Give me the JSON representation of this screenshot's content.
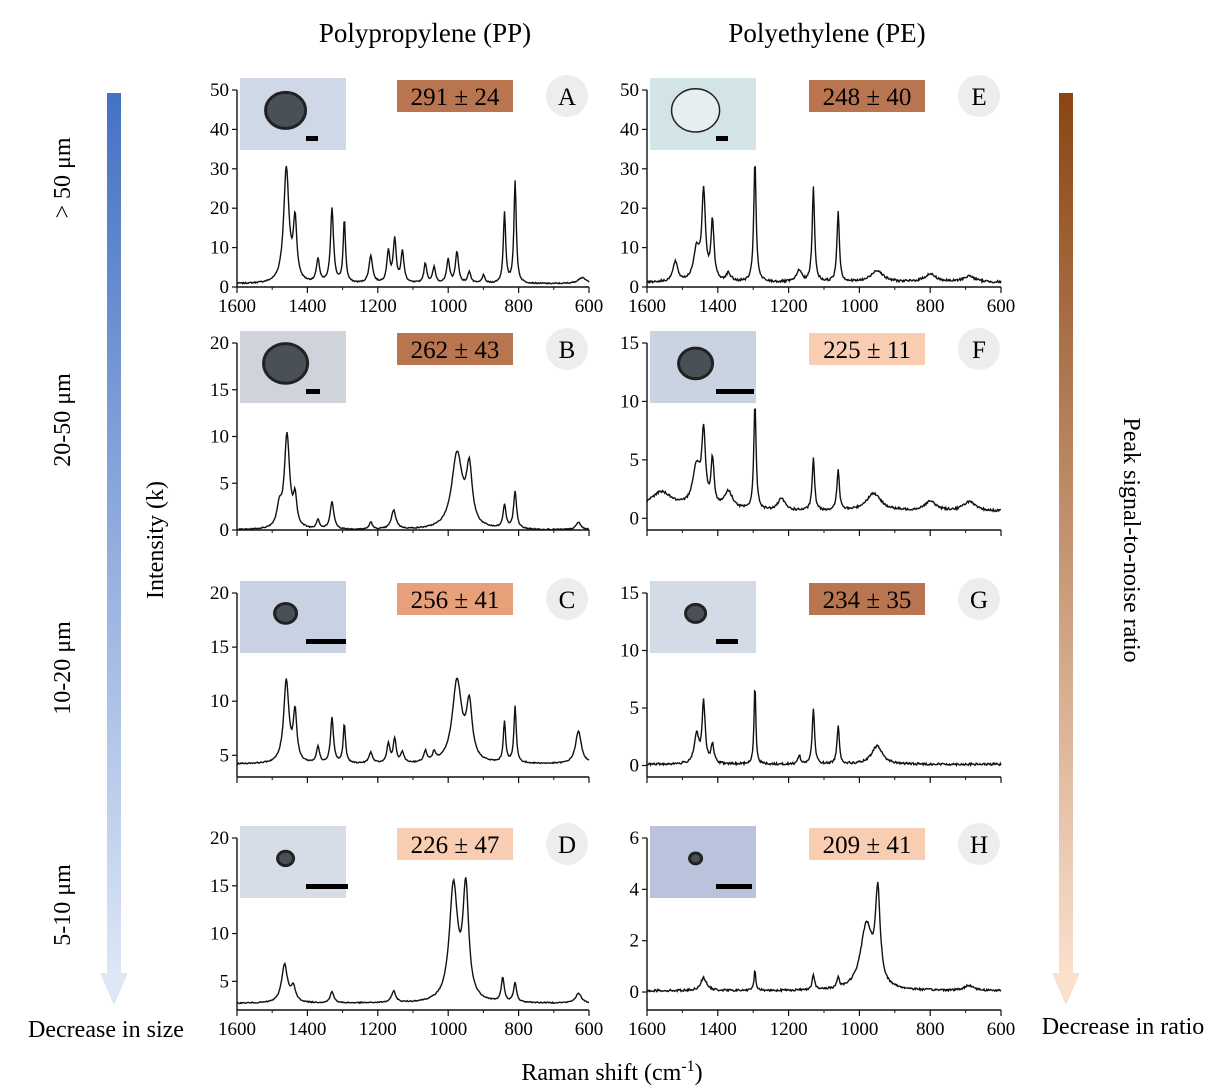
{
  "figure": {
    "column_titles": [
      "Polypropylene (PP)",
      "Polyethylene (PE)"
    ],
    "row_labels": [
      "> 50 μm",
      "20-50 μm",
      "10-20 μm",
      "5-10 μm"
    ],
    "left_arrow_label": "Decrease in size",
    "right_arrow_label": "Decrease in ratio",
    "right_axis_title": "Peak signal-to-noise ratio",
    "y_axis_title": "Intensity (k)",
    "x_axis_title": "Raman shift (cm",
    "x_axis_unit_sup": "-1",
    "x_axis_close": ")",
    "x_ticks": [
      "1600",
      "1400",
      "1200",
      "1000",
      "800",
      "600"
    ],
    "colors": {
      "line": "#111111",
      "left_arrow": "#4472c4",
      "right_arrow": "#8b4513",
      "badge_dark": "#b87550",
      "badge_mid": "#e8a07a",
      "badge_light": "#f8cdb1",
      "letter_bg": "#ededed"
    }
  },
  "chart_data": [
    {
      "type": "line",
      "panel": "A",
      "polymer": "PP",
      "size": "> 50 μm",
      "badge": "291 ± 24",
      "badge_tone": "dark",
      "xlim": [
        1600,
        600
      ],
      "ylim": [
        0,
        50
      ],
      "yticks": [
        0,
        10,
        20,
        30,
        40,
        50
      ],
      "baseline": 0.8,
      "peaks": [
        [
          1460,
          29,
          9
        ],
        [
          1435,
          15,
          6
        ],
        [
          1370,
          6,
          5
        ],
        [
          1330,
          19,
          5
        ],
        [
          1295,
          16,
          4
        ],
        [
          1220,
          7,
          6
        ],
        [
          1170,
          8,
          5
        ],
        [
          1152,
          11,
          5
        ],
        [
          1130,
          8,
          5
        ],
        [
          1065,
          5,
          5
        ],
        [
          1040,
          4,
          5
        ],
        [
          1000,
          6,
          5
        ],
        [
          975,
          8,
          5
        ],
        [
          940,
          3,
          5
        ],
        [
          900,
          2,
          5
        ],
        [
          840,
          18,
          4
        ],
        [
          810,
          26,
          4
        ],
        [
          620,
          1.5,
          15
        ]
      ]
    },
    {
      "type": "line",
      "panel": "B",
      "polymer": "PP",
      "size": "20-50 μm",
      "badge": "262 ± 43",
      "badge_tone": "dark",
      "xlim": [
        1600,
        600
      ],
      "ylim": [
        0,
        20
      ],
      "yticks": [
        0,
        5,
        10,
        15,
        20
      ],
      "baseline": 0,
      "peaks": [
        [
          1480,
          2,
          8
        ],
        [
          1458,
          10,
          9
        ],
        [
          1435,
          3,
          6
        ],
        [
          1370,
          1,
          5
        ],
        [
          1330,
          3,
          6
        ],
        [
          1220,
          0.8,
          5
        ],
        [
          1155,
          2,
          8
        ],
        [
          975,
          8,
          18
        ],
        [
          940,
          6,
          10
        ],
        [
          840,
          2.5,
          5
        ],
        [
          810,
          4,
          5
        ],
        [
          630,
          0.8,
          8
        ]
      ]
    },
    {
      "type": "line",
      "panel": "C",
      "polymer": "PP",
      "size": "10-20 μm",
      "badge": "256 ± 41",
      "badge_tone": "mid",
      "xlim": [
        1600,
        600
      ],
      "ylim": [
        3,
        20
      ],
      "yticks": [
        5,
        10,
        15,
        20
      ],
      "baseline": 4.2,
      "peaks": [
        [
          1460,
          7.6,
          9
        ],
        [
          1435,
          4.5,
          6
        ],
        [
          1370,
          1.5,
          5
        ],
        [
          1330,
          4.2,
          5
        ],
        [
          1295,
          3.6,
          4
        ],
        [
          1220,
          1,
          6
        ],
        [
          1170,
          1.8,
          5
        ],
        [
          1152,
          2.2,
          5
        ],
        [
          1130,
          1,
          5
        ],
        [
          1065,
          1,
          5
        ],
        [
          1040,
          0.8,
          5
        ],
        [
          975,
          7.5,
          16
        ],
        [
          940,
          5,
          10
        ],
        [
          840,
          3.8,
          4
        ],
        [
          810,
          5.2,
          4
        ],
        [
          630,
          3,
          10
        ]
      ]
    },
    {
      "type": "line",
      "panel": "D",
      "polymer": "PP",
      "size": "5-10 μm",
      "badge": "226 ± 47",
      "badge_tone": "light",
      "xlim": [
        1600,
        600
      ],
      "ylim": [
        2,
        20
      ],
      "yticks": [
        5,
        10,
        15,
        20
      ],
      "baseline": 2.7,
      "peaks": [
        [
          1465,
          4,
          10
        ],
        [
          1440,
          1.5,
          8
        ],
        [
          1330,
          1.2,
          6
        ],
        [
          1155,
          1.2,
          7
        ],
        [
          985,
          12,
          14
        ],
        [
          950,
          11.5,
          10
        ],
        [
          845,
          2.5,
          5
        ],
        [
          810,
          2,
          5
        ],
        [
          630,
          1,
          10
        ]
      ]
    },
    {
      "type": "line",
      "panel": "E",
      "polymer": "PE",
      "size": "> 50 μm",
      "badge": "248 ± 40",
      "badge_tone": "dark",
      "xlim": [
        1600,
        600
      ],
      "ylim": [
        0,
        50
      ],
      "yticks": [
        0,
        10,
        20,
        30,
        40,
        50
      ],
      "baseline": 1.2,
      "peaks": [
        [
          1520,
          5,
          8
        ],
        [
          1460,
          8,
          10
        ],
        [
          1440,
          22,
          6
        ],
        [
          1415,
          15,
          5
        ],
        [
          1370,
          2,
          8
        ],
        [
          1295,
          31,
          4
        ],
        [
          1170,
          3,
          8
        ],
        [
          1130,
          24,
          4
        ],
        [
          1060,
          18,
          4
        ],
        [
          950,
          3,
          20
        ],
        [
          800,
          2,
          20
        ],
        [
          690,
          1.5,
          20
        ]
      ]
    },
    {
      "type": "line",
      "panel": "F",
      "polymer": "PE",
      "size": "20-50 μm",
      "badge": "225 ± 11",
      "badge_tone": "light",
      "xlim": [
        1600,
        600
      ],
      "ylim": [
        -1,
        15
      ],
      "yticks": [
        0,
        5,
        10,
        15
      ],
      "baseline": 0.6,
      "peaks": [
        [
          1560,
          1.6,
          40
        ],
        [
          1460,
          3.5,
          14
        ],
        [
          1440,
          6,
          6
        ],
        [
          1415,
          4,
          5
        ],
        [
          1370,
          1.5,
          15
        ],
        [
          1295,
          9,
          4
        ],
        [
          1220,
          1,
          12
        ],
        [
          1130,
          4.5,
          4
        ],
        [
          1060,
          3.5,
          4
        ],
        [
          960,
          1.5,
          25
        ],
        [
          800,
          0.8,
          20
        ],
        [
          690,
          0.8,
          20
        ]
      ]
    },
    {
      "type": "line",
      "panel": "G",
      "polymer": "PE",
      "size": "10-20 μm",
      "badge": "234 ± 35",
      "badge_tone": "dark",
      "xlim": [
        1600,
        600
      ],
      "ylim": [
        -1,
        15
      ],
      "yticks": [
        0,
        5,
        10,
        15
      ],
      "baseline": 0.1,
      "peaks": [
        [
          1460,
          2.5,
          8
        ],
        [
          1440,
          5.3,
          5
        ],
        [
          1415,
          1.6,
          5
        ],
        [
          1295,
          7,
          3
        ],
        [
          1170,
          0.8,
          4
        ],
        [
          1130,
          4.8,
          4
        ],
        [
          1060,
          3.3,
          4
        ],
        [
          950,
          1.6,
          18
        ]
      ]
    },
    {
      "type": "line",
      "panel": "H",
      "polymer": "PE",
      "size": "5-10 μm",
      "badge": "209 ± 41",
      "badge_tone": "light",
      "xlim": [
        1600,
        600
      ],
      "ylim": [
        -0.7,
        6
      ],
      "yticks": [
        0,
        2,
        4,
        6
      ],
      "baseline": 0.05,
      "peaks": [
        [
          1440,
          0.5,
          10
        ],
        [
          1295,
          0.8,
          3
        ],
        [
          1130,
          0.6,
          4
        ],
        [
          1060,
          0.4,
          4
        ],
        [
          980,
          2.5,
          20
        ],
        [
          948,
          3.5,
          8
        ],
        [
          690,
          0.2,
          15
        ]
      ]
    }
  ]
}
